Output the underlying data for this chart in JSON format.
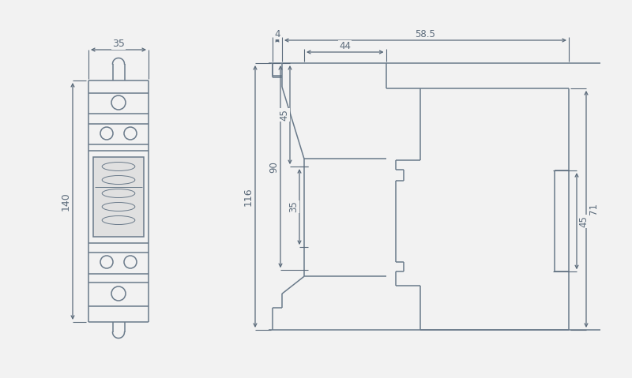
{
  "bg_color": "#f2f2f2",
  "line_color": "#6a7a8a",
  "dim_color": "#5a6a7a",
  "lw": 1.1,
  "lw_thin": 0.7,
  "fig_w": 8.0,
  "fig_h": 4.79,
  "annotations": {
    "width_35": "35",
    "height_140": "140",
    "dim_4": "4",
    "dim_44": "44",
    "dim_58_5": "58.5",
    "dim_45_top": "45",
    "dim_35_mid": "35",
    "dim_90": "90",
    "dim_116": "116",
    "dim_45_right": "45",
    "dim_71": "71"
  }
}
